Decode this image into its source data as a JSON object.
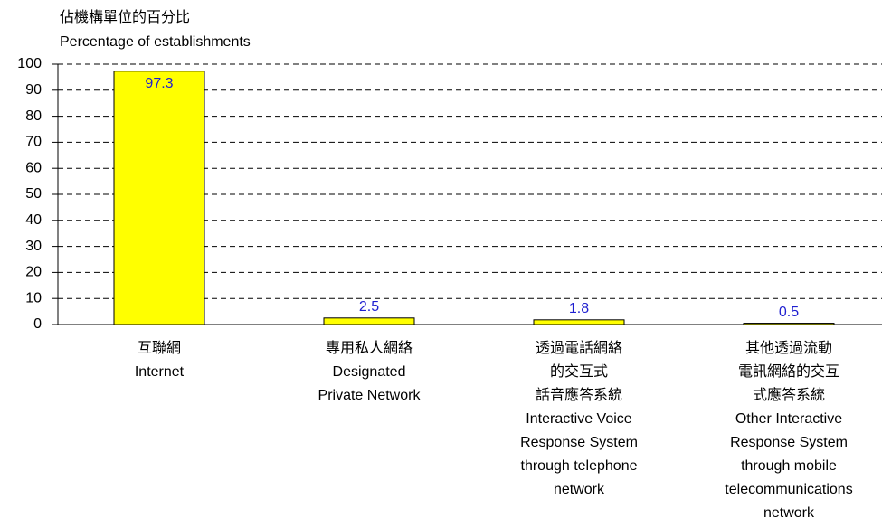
{
  "chart_data": {
    "type": "bar",
    "ylabel": [
      "佔機構單位的百分比",
      "Percentage of establishments"
    ],
    "categories": [
      [
        "互聯網",
        "Internet"
      ],
      [
        "專用私人網絡",
        "Designated",
        "Private Network"
      ],
      [
        "透過電話網絡",
        "的交互式",
        "話音應答系統",
        "Interactive Voice",
        "Response System",
        "through telephone",
        "network"
      ],
      [
        "其他透過流動",
        "電訊網絡的交互",
        "式應答系統",
        "Other Interactive",
        "Response System",
        "through mobile",
        "telecommunications",
        "network"
      ]
    ],
    "values": [
      97.3,
      2.5,
      1.8,
      0.5
    ],
    "color": "#ffff00",
    "ylim": [
      0,
      100
    ],
    "yticks": [
      0,
      10,
      20,
      30,
      40,
      50,
      60,
      70,
      80,
      90,
      100
    ],
    "grid": true
  }
}
